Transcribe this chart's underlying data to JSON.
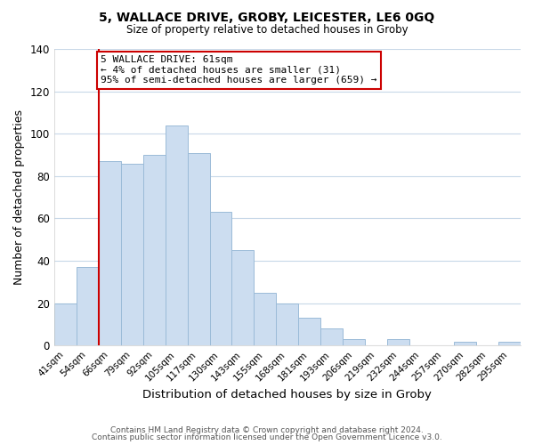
{
  "title": "5, WALLACE DRIVE, GROBY, LEICESTER, LE6 0GQ",
  "subtitle": "Size of property relative to detached houses in Groby",
  "xlabel": "Distribution of detached houses by size in Groby",
  "ylabel": "Number of detached properties",
  "bar_labels": [
    "41sqm",
    "54sqm",
    "66sqm",
    "79sqm",
    "92sqm",
    "105sqm",
    "117sqm",
    "130sqm",
    "143sqm",
    "155sqm",
    "168sqm",
    "181sqm",
    "193sqm",
    "206sqm",
    "219sqm",
    "232sqm",
    "244sqm",
    "257sqm",
    "270sqm",
    "282sqm",
    "295sqm"
  ],
  "bar_values": [
    20,
    37,
    87,
    86,
    90,
    104,
    91,
    63,
    45,
    25,
    20,
    13,
    8,
    3,
    0,
    3,
    0,
    0,
    2,
    0,
    2
  ],
  "bar_color": "#ccddf0",
  "bar_edge_color": "#9bbbd8",
  "ylim": [
    0,
    140
  ],
  "yticks": [
    0,
    20,
    40,
    60,
    80,
    100,
    120,
    140
  ],
  "property_line_label": "5 WALLACE DRIVE: 61sqm",
  "annotation_line1": "← 4% of detached houses are smaller (31)",
  "annotation_line2": "95% of semi-detached houses are larger (659) →",
  "annotation_box_color": "#ffffff",
  "annotation_box_edge": "#cc0000",
  "property_line_color": "#cc0000",
  "footer1": "Contains HM Land Registry data © Crown copyright and database right 2024.",
  "footer2": "Contains public sector information licensed under the Open Government Licence v3.0.",
  "background_color": "#ffffff",
  "grid_color": "#c8d8e8"
}
